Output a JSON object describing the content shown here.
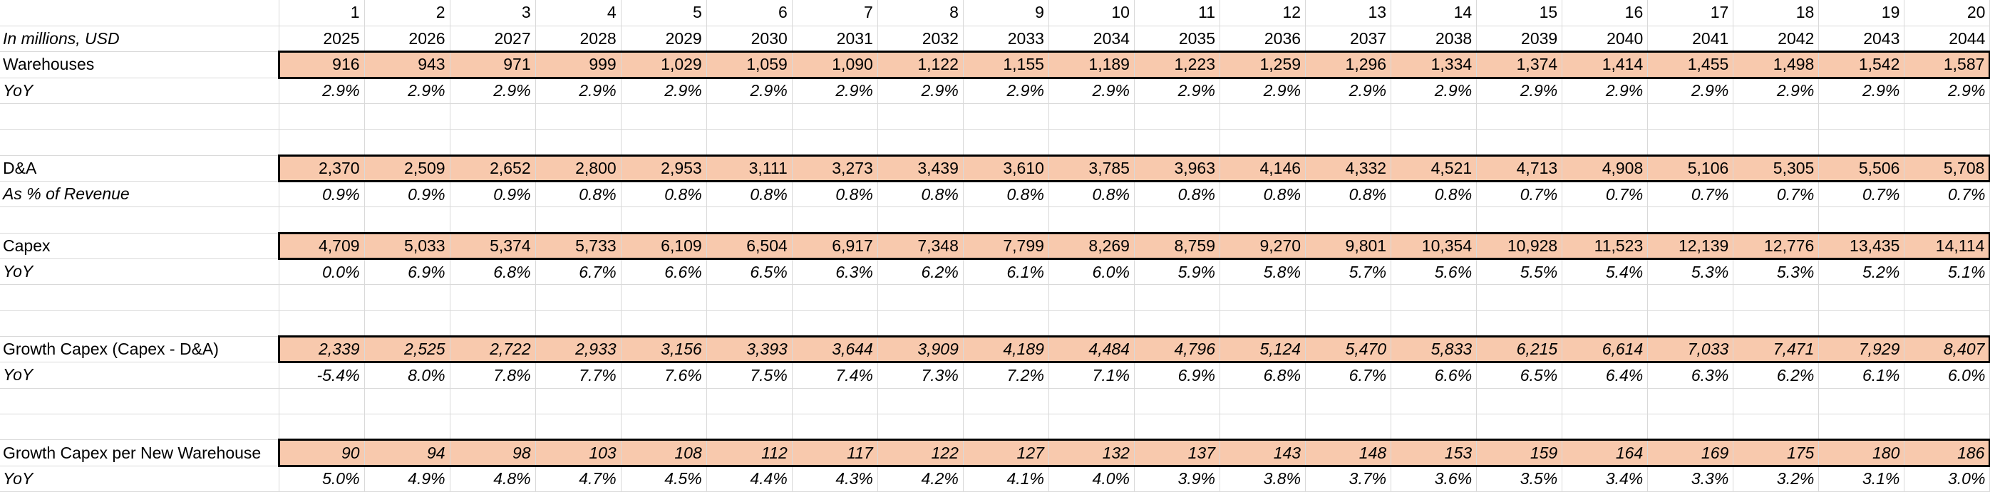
{
  "sheet": {
    "header_units": "In millions, USD",
    "periods": [
      "1",
      "2",
      "3",
      "4",
      "5",
      "6",
      "7",
      "8",
      "9",
      "10",
      "11",
      "12",
      "13",
      "14",
      "15",
      "16",
      "17",
      "18",
      "19",
      "20"
    ],
    "years": [
      "2025",
      "2026",
      "2027",
      "2028",
      "2029",
      "2030",
      "2031",
      "2032",
      "2033",
      "2034",
      "2035",
      "2036",
      "2037",
      "2038",
      "2039",
      "2040",
      "2041",
      "2042",
      "2043",
      "2044"
    ],
    "rows": [
      {
        "label": "Warehouses",
        "style": "highlight",
        "values": [
          "916",
          "943",
          "971",
          "999",
          "1,029",
          "1,059",
          "1,090",
          "1,122",
          "1,155",
          "1,189",
          "1,223",
          "1,259",
          "1,296",
          "1,334",
          "1,374",
          "1,414",
          "1,455",
          "1,498",
          "1,542",
          "1,587"
        ]
      },
      {
        "label": "YoY",
        "style": "italic",
        "values": [
          "2.9%",
          "2.9%",
          "2.9%",
          "2.9%",
          "2.9%",
          "2.9%",
          "2.9%",
          "2.9%",
          "2.9%",
          "2.9%",
          "2.9%",
          "2.9%",
          "2.9%",
          "2.9%",
          "2.9%",
          "2.9%",
          "2.9%",
          "2.9%",
          "2.9%",
          "2.9%"
        ]
      },
      {
        "label": "",
        "style": "blank",
        "values": []
      },
      {
        "label": "",
        "style": "blank",
        "values": []
      },
      {
        "label": "D&A",
        "style": "highlight",
        "values": [
          "2,370",
          "2,509",
          "2,652",
          "2,800",
          "2,953",
          "3,111",
          "3,273",
          "3,439",
          "3,610",
          "3,785",
          "3,963",
          "4,146",
          "4,332",
          "4,521",
          "4,713",
          "4,908",
          "5,106",
          "5,305",
          "5,506",
          "5,708"
        ]
      },
      {
        "label": "As % of Revenue",
        "style": "italic-label",
        "values": [
          "0.9%",
          "0.9%",
          "0.9%",
          "0.8%",
          "0.8%",
          "0.8%",
          "0.8%",
          "0.8%",
          "0.8%",
          "0.8%",
          "0.8%",
          "0.8%",
          "0.8%",
          "0.8%",
          "0.7%",
          "0.7%",
          "0.7%",
          "0.7%",
          "0.7%",
          "0.7%"
        ]
      },
      {
        "label": "",
        "style": "blank",
        "values": []
      },
      {
        "label": "Capex",
        "style": "highlight",
        "values": [
          "4,709",
          "5,033",
          "5,374",
          "5,733",
          "6,109",
          "6,504",
          "6,917",
          "7,348",
          "7,799",
          "8,269",
          "8,759",
          "9,270",
          "9,801",
          "10,354",
          "10,928",
          "11,523",
          "12,139",
          "12,776",
          "13,435",
          "14,114"
        ]
      },
      {
        "label": "YoY",
        "style": "italic",
        "values": [
          "0.0%",
          "6.9%",
          "6.8%",
          "6.7%",
          "6.6%",
          "6.5%",
          "6.3%",
          "6.2%",
          "6.1%",
          "6.0%",
          "5.9%",
          "5.8%",
          "5.7%",
          "5.6%",
          "5.5%",
          "5.4%",
          "5.3%",
          "5.3%",
          "5.2%",
          "5.1%"
        ]
      },
      {
        "label": "",
        "style": "blank",
        "values": []
      },
      {
        "label": "",
        "style": "blank",
        "values": []
      },
      {
        "label": "Growth Capex (Capex - D&A)",
        "style": "highlight-italic",
        "values": [
          "2,339",
          "2,525",
          "2,722",
          "2,933",
          "3,156",
          "3,393",
          "3,644",
          "3,909",
          "4,189",
          "4,484",
          "4,796",
          "5,124",
          "5,470",
          "5,833",
          "6,215",
          "6,614",
          "7,033",
          "7,471",
          "7,929",
          "8,407"
        ]
      },
      {
        "label": "YoY",
        "style": "italic-label",
        "values": [
          "-5.4%",
          "8.0%",
          "7.8%",
          "7.7%",
          "7.6%",
          "7.5%",
          "7.4%",
          "7.3%",
          "7.2%",
          "7.1%",
          "6.9%",
          "6.8%",
          "6.7%",
          "6.6%",
          "6.5%",
          "6.4%",
          "6.3%",
          "6.2%",
          "6.1%",
          "6.0%"
        ]
      },
      {
        "label": "",
        "style": "blank",
        "values": []
      },
      {
        "label": "",
        "style": "blank",
        "values": []
      },
      {
        "label": "Growth Capex per New Warehouse",
        "style": "highlight-italic",
        "values": [
          "90",
          "94",
          "98",
          "103",
          "108",
          "112",
          "117",
          "122",
          "127",
          "132",
          "137",
          "143",
          "148",
          "153",
          "159",
          "164",
          "169",
          "175",
          "180",
          "186"
        ]
      },
      {
        "label": "YoY",
        "style": "italic",
        "values": [
          "5.0%",
          "4.9%",
          "4.8%",
          "4.7%",
          "4.5%",
          "4.4%",
          "4.3%",
          "4.2%",
          "4.1%",
          "4.0%",
          "3.9%",
          "3.8%",
          "3.7%",
          "3.6%",
          "3.5%",
          "3.4%",
          "3.3%",
          "3.2%",
          "3.1%",
          "3.0%"
        ]
      }
    ]
  }
}
